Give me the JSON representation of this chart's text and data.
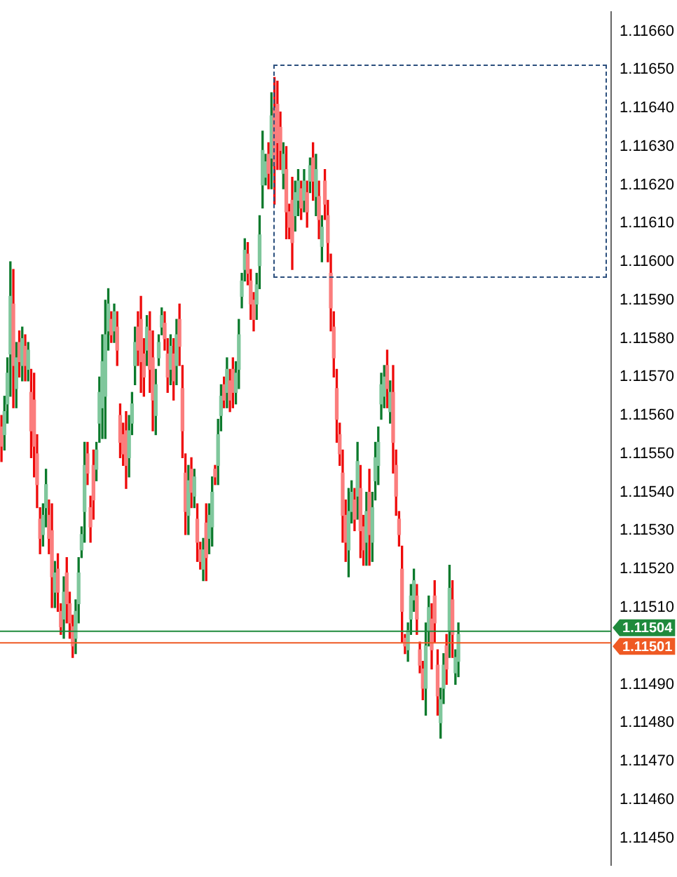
{
  "chart_data": {
    "type": "candlestick",
    "categories": [
      null,
      null,
      null,
      null,
      null,
      null,
      null,
      null,
      null,
      null,
      null,
      null,
      null,
      null,
      null,
      null,
      null,
      null,
      null,
      null,
      null,
      null,
      null,
      null,
      null,
      null,
      null,
      null,
      null,
      null,
      null,
      null,
      null,
      null,
      null,
      null,
      null,
      null,
      null,
      null,
      null,
      null,
      null,
      null,
      null,
      null,
      null,
      null,
      null,
      null,
      null,
      null,
      null,
      null,
      null,
      null,
      null,
      null,
      null,
      null,
      null,
      null,
      null,
      null,
      null,
      null,
      null,
      null,
      null,
      null,
      null,
      null,
      null,
      null,
      null,
      null,
      null,
      null,
      null,
      null,
      null,
      null,
      null,
      null,
      null,
      null,
      null,
      null,
      null,
      null,
      null,
      null,
      null,
      null,
      null,
      null,
      null,
      null,
      null,
      null,
      null,
      null,
      null,
      null,
      null,
      null,
      null,
      null,
      null,
      null,
      null,
      null,
      null,
      null,
      null,
      null,
      null,
      null,
      null,
      null,
      null,
      null,
      null,
      null,
      null,
      null,
      null,
      null,
      null,
      null,
      null,
      null,
      null,
      null,
      null,
      null,
      null,
      null,
      null,
      null,
      null,
      null,
      null,
      null,
      null,
      null,
      null,
      null,
      null,
      null,
      null,
      null,
      null,
      null,
      null,
      null,
      null,
      null,
      null,
      null,
      null,
      null,
      null,
      null,
      null,
      null,
      null,
      null,
      null,
      null,
      null,
      null,
      null,
      null,
      null,
      null,
      null,
      null,
      null,
      null,
      null,
      null,
      null,
      null,
      null,
      null,
      null,
      null,
      null,
      null,
      null,
      null,
      null,
      null,
      null,
      null,
      null,
      null,
      null,
      null,
      null,
      null,
      null,
      null,
      null,
      null
    ],
    "ohlc": [
      [
        1.11557,
        1.1156,
        1.11548,
        1.11552
      ],
      [
        1.11555,
        1.11565,
        1.11551,
        1.11561
      ],
      [
        1.11563,
        1.11575,
        1.11558,
        1.11571
      ],
      [
        1.11576,
        1.116,
        1.11565,
        1.11591
      ],
      [
        1.11589,
        1.11598,
        1.11562,
        1.11573
      ],
      [
        1.11567,
        1.11579,
        1.11562,
        1.11575
      ],
      [
        1.11579,
        1.11582,
        1.1157,
        1.11574
      ],
      [
        1.11573,
        1.11583,
        1.11569,
        1.1158
      ],
      [
        1.11578,
        1.11581,
        1.11569,
        1.11573
      ],
      [
        1.11572,
        1.11579,
        1.11569,
        1.11577
      ],
      [
        1.11566,
        1.11572,
        1.11549,
        1.11556
      ],
      [
        1.11564,
        1.11571,
        1.11544,
        1.11552
      ],
      [
        1.1155,
        1.11555,
        1.11536,
        1.11542
      ],
      [
        1.11533,
        1.11536,
        1.11524,
        1.11528
      ],
      [
        1.11529,
        1.11537,
        1.11526,
        1.11534
      ],
      [
        1.11536,
        1.11546,
        1.11531,
        1.11542
      ],
      [
        1.11534,
        1.11538,
        1.11524,
        1.11528
      ],
      [
        1.1153,
        1.11537,
        1.1151,
        1.11518
      ],
      [
        1.11514,
        1.11522,
        1.1151,
        1.11519
      ],
      [
        1.1152,
        1.11524,
        1.11509,
        1.11514
      ],
      [
        1.11509,
        1.11511,
        1.11503,
        1.11505
      ],
      [
        1.11507,
        1.11518,
        1.11502,
        1.11514
      ],
      [
        1.11519,
        1.11523,
        1.11506,
        1.11511
      ],
      [
        1.11511,
        1.11514,
        1.11502,
        1.11506
      ],
      [
        1.11505,
        1.11508,
        1.11497,
        1.115
      ],
      [
        1.11502,
        1.11512,
        1.11498,
        1.11509
      ],
      [
        1.11511,
        1.11523,
        1.11506,
        1.11519
      ],
      [
        1.11525,
        1.11531,
        1.11523,
        1.11529
      ],
      [
        1.11535,
        1.11553,
        1.11527,
        1.11547
      ],
      [
        1.1155,
        1.11553,
        1.11542,
        1.11545
      ],
      [
        1.11536,
        1.11539,
        1.11527,
        1.11531
      ],
      [
        1.11547,
        1.11551,
        1.11533,
        1.11538
      ],
      [
        1.11546,
        1.11553,
        1.11543,
        1.11551
      ],
      [
        1.11558,
        1.1157,
        1.11553,
        1.11566
      ],
      [
        1.11562,
        1.11581,
        1.11554,
        1.11574
      ],
      [
        1.11565,
        1.1159,
        1.11554,
        1.11581
      ],
      [
        1.11582,
        1.11593,
        1.11577,
        1.11589
      ],
      [
        1.11585,
        1.11587,
        1.11579,
        1.11581
      ],
      [
        1.11582,
        1.11589,
        1.11579,
        1.11587
      ],
      [
        1.11583,
        1.11587,
        1.11573,
        1.11577
      ],
      [
        1.1156,
        1.11563,
        1.11549,
        1.11553
      ],
      [
        1.11555,
        1.11558,
        1.11547,
        1.1155
      ],
      [
        1.11556,
        1.11561,
        1.11541,
        1.11547
      ],
      [
        1.11549,
        1.1156,
        1.11544,
        1.11556
      ],
      [
        1.11558,
        1.11566,
        1.11555,
        1.11563
      ],
      [
        1.11573,
        1.11583,
        1.11568,
        1.11579
      ],
      [
        1.11583,
        1.11587,
        1.11573,
        1.11577
      ],
      [
        1.11585,
        1.11591,
        1.11566,
        1.11574
      ],
      [
        1.11576,
        1.1158,
        1.11565,
        1.1157
      ],
      [
        1.11577,
        1.11586,
        1.11573,
        1.11583
      ],
      [
        1.11582,
        1.11587,
        1.11566,
        1.11572
      ],
      [
        1.11575,
        1.11582,
        1.11556,
        1.11564
      ],
      [
        1.1156,
        1.11572,
        1.11555,
        1.11568
      ],
      [
        1.11575,
        1.11581,
        1.11573,
        1.11579
      ],
      [
        1.11583,
        1.11588,
        1.11581,
        1.11586
      ],
      [
        1.11584,
        1.11587,
        1.11577,
        1.1158
      ],
      [
        1.11576,
        1.1158,
        1.11566,
        1.1157
      ],
      [
        1.11572,
        1.11581,
        1.11568,
        1.11578
      ],
      [
        1.11576,
        1.1158,
        1.11564,
        1.11569
      ],
      [
        1.11573,
        1.11585,
        1.11568,
        1.11581
      ],
      [
        1.11585,
        1.11589,
        1.11573,
        1.11578
      ],
      [
        1.11567,
        1.11573,
        1.11549,
        1.11556
      ],
      [
        1.11545,
        1.1155,
        1.11529,
        1.11535
      ],
      [
        1.11534,
        1.11547,
        1.11529,
        1.11543
      ],
      [
        1.11546,
        1.11549,
        1.11536,
        1.1154
      ],
      [
        1.11539,
        1.11546,
        1.11536,
        1.11544
      ],
      [
        1.11533,
        1.11537,
        1.11522,
        1.11527
      ],
      [
        1.11525,
        1.11527,
        1.1152,
        1.11522
      ],
      [
        1.1152,
        1.11528,
        1.11517,
        1.11525
      ],
      [
        1.11532,
        1.11537,
        1.11517,
        1.11523
      ],
      [
        1.11528,
        1.11537,
        1.11524,
        1.11534
      ],
      [
        1.11531,
        1.11544,
        1.11526,
        1.1154
      ],
      [
        1.11546,
        1.11547,
        1.11542,
        1.11544
      ],
      [
        1.11547,
        1.11559,
        1.11542,
        1.11555
      ],
      [
        1.1156,
        1.11568,
        1.11556,
        1.11565
      ],
      [
        1.11568,
        1.1157,
        1.11562,
        1.11564
      ],
      [
        1.11566,
        1.11575,
        1.11562,
        1.11572
      ],
      [
        1.11569,
        1.11572,
        1.11561,
        1.11564
      ],
      [
        1.11572,
        1.11575,
        1.11562,
        1.11566
      ],
      [
        1.11566,
        1.11574,
        1.11563,
        1.11571
      ],
      [
        1.11572,
        1.11585,
        1.11567,
        1.11581
      ],
      [
        1.11591,
        1.11597,
        1.11588,
        1.11595
      ],
      [
        1.11598,
        1.11606,
        1.11595,
        1.11603
      ],
      [
        1.11602,
        1.11605,
        1.11594,
        1.11597
      ],
      [
        1.11595,
        1.11598,
        1.11585,
        1.11589
      ],
      [
        1.1159,
        1.11592,
        1.11582,
        1.11585
      ],
      [
        1.11589,
        1.11597,
        1.11585,
        1.11594
      ],
      [
        1.11599,
        1.11612,
        1.11593,
        1.11607
      ],
      [
        1.1162,
        1.11634,
        1.11614,
        1.11629
      ],
      [
        1.11622,
        1.11628,
        1.1162,
        1.11626
      ],
      [
        1.11628,
        1.11631,
        1.11619,
        1.11623
      ],
      [
        1.11627,
        1.11644,
        1.11619,
        1.11638
      ],
      [
        1.1164,
        1.11648,
        1.11615,
        1.11625
      ],
      [
        1.11641,
        1.11647,
        1.11624,
        1.11631
      ],
      [
        1.11635,
        1.11639,
        1.11624,
        1.11629
      ],
      [
        1.11623,
        1.11631,
        1.11619,
        1.11628
      ],
      [
        1.11624,
        1.1163,
        1.11606,
        1.11613
      ],
      [
        1.11613,
        1.11615,
        1.11606,
        1.11609
      ],
      [
        1.11616,
        1.11622,
        1.11598,
        1.11605
      ],
      [
        1.11612,
        1.11621,
        1.11608,
        1.11618
      ],
      [
        1.11616,
        1.11624,
        1.11612,
        1.11621
      ],
      [
        1.11619,
        1.11621,
        1.11611,
        1.11614
      ],
      [
        1.11616,
        1.11624,
        1.11613,
        1.11621
      ],
      [
        1.11618,
        1.11621,
        1.11609,
        1.11613
      ],
      [
        1.11621,
        1.11627,
        1.11618,
        1.11625
      ],
      [
        1.11627,
        1.11631,
        1.11616,
        1.11621
      ],
      [
        1.11617,
        1.11628,
        1.11612,
        1.11624
      ],
      [
        1.11617,
        1.11621,
        1.11606,
        1.11611
      ],
      [
        1.11604,
        1.11612,
        1.116,
        1.11609
      ],
      [
        1.11621,
        1.11624,
        1.11611,
        1.11615
      ],
      [
        1.11612,
        1.11616,
        1.116,
        1.11605
      ],
      [
        1.11597,
        1.11602,
        1.11582,
        1.11588
      ],
      [
        1.11583,
        1.11587,
        1.1157,
        1.11575
      ],
      [
        1.11567,
        1.11572,
        1.11553,
        1.11559
      ],
      [
        1.11555,
        1.11558,
        1.11547,
        1.1155
      ],
      [
        1.11545,
        1.11551,
        1.11527,
        1.11534
      ],
      [
        1.11534,
        1.11538,
        1.11522,
        1.11527
      ],
      [
        1.11525,
        1.11541,
        1.11518,
        1.11535
      ],
      [
        1.11535,
        1.11543,
        1.11532,
        1.1154
      ],
      [
        1.11538,
        1.11541,
        1.1153,
        1.11533
      ],
      [
        1.11539,
        1.11553,
        1.11533,
        1.11548
      ],
      [
        1.11541,
        1.11547,
        1.11523,
        1.1153
      ],
      [
        1.11531,
        1.11534,
        1.11521,
        1.11525
      ],
      [
        1.11527,
        1.1154,
        1.11521,
        1.11535
      ],
      [
        1.1154,
        1.11546,
        1.11521,
        1.11529
      ],
      [
        1.11527,
        1.1154,
        1.11522,
        1.11536
      ],
      [
        1.11543,
        1.11553,
        1.11538,
        1.11549
      ],
      [
        1.11547,
        1.11557,
        1.11542,
        1.11553
      ],
      [
        1.11563,
        1.11571,
        1.11559,
        1.11568
      ],
      [
        1.11565,
        1.11573,
        1.11562,
        1.1157
      ],
      [
        1.11573,
        1.11577,
        1.11562,
        1.11567
      ],
      [
        1.11561,
        1.11569,
        1.11558,
        1.11566
      ],
      [
        1.11566,
        1.11573,
        1.11545,
        1.11553
      ],
      [
        1.11547,
        1.11551,
        1.11534,
        1.11539
      ],
      [
        1.11533,
        1.11535,
        1.11526,
        1.11529
      ],
      [
        1.1152,
        1.11526,
        1.11501,
        1.11509
      ],
      [
        1.11502,
        1.11503,
        1.11498,
        1.115
      ],
      [
        1.11499,
        1.11506,
        1.11496,
        1.11504
      ],
      [
        1.11507,
        1.11516,
        1.11503,
        1.11513
      ],
      [
        1.11512,
        1.1152,
        1.11509,
        1.11517
      ],
      [
        1.11513,
        1.11516,
        1.11503,
        1.11507
      ],
      [
        1.11499,
        1.11501,
        1.11493,
        1.11495
      ],
      [
        1.11494,
        1.11496,
        1.11486,
        1.11489
      ],
      [
        1.11489,
        1.11506,
        1.11482,
        1.115
      ],
      [
        1.11504,
        1.11513,
        1.115,
        1.1151
      ],
      [
        1.11507,
        1.11511,
        1.11494,
        1.11499
      ],
      [
        1.11513,
        1.11517,
        1.11501,
        1.11506
      ],
      [
        1.11495,
        1.11499,
        1.11482,
        1.11487
      ],
      [
        1.1148,
        1.11489,
        1.11476,
        1.11486
      ],
      [
        1.11489,
        1.11498,
        1.11485,
        1.11495
      ],
      [
        1.115,
        1.11503,
        1.1149,
        1.11494
      ],
      [
        1.11504,
        1.11521,
        1.11497,
        1.11515
      ],
      [
        1.11512,
        1.11517,
        1.11497,
        1.11503
      ],
      [
        1.11493,
        1.11499,
        1.1149,
        1.11497
      ],
      [
        1.11496,
        1.11506,
        1.11492,
        1.11503
      ],
      null,
      null,
      null,
      null,
      null,
      null,
      null,
      null,
      null,
      null,
      null,
      null,
      null,
      null,
      null,
      null,
      null,
      null,
      null,
      null,
      null,
      null,
      null,
      null,
      null,
      null,
      null,
      null,
      null,
      null,
      null,
      null,
      null,
      null,
      null,
      null,
      null,
      null,
      null,
      null,
      null,
      null,
      null,
      null,
      null,
      null,
      null,
      null,
      null,
      null,
      null
    ],
    "ylim": [
      1.11443,
      1.11665
    ],
    "yticks": [
      {
        "value": 1.1145,
        "label": "1.11450"
      },
      {
        "value": 1.1146,
        "label": "1.11460"
      },
      {
        "value": 1.1147,
        "label": "1.11470"
      },
      {
        "value": 1.1148,
        "label": "1.11480"
      },
      {
        "value": 1.1149,
        "label": "1.11490"
      },
      {
        "value": 1.1151,
        "label": "1.11510"
      },
      {
        "value": 1.1152,
        "label": "1.11520"
      },
      {
        "value": 1.1153,
        "label": "1.11530"
      },
      {
        "value": 1.1154,
        "label": "1.11540"
      },
      {
        "value": 1.1155,
        "label": "1.11550"
      },
      {
        "value": 1.1156,
        "label": "1.11560"
      },
      {
        "value": 1.1157,
        "label": "1.11570"
      },
      {
        "value": 1.1158,
        "label": "1.11580"
      },
      {
        "value": 1.1159,
        "label": "1.11590"
      },
      {
        "value": 1.116,
        "label": "1.11600"
      },
      {
        "value": 1.1161,
        "label": "1.11610"
      },
      {
        "value": 1.1162,
        "label": "1.11620"
      },
      {
        "value": 1.1163,
        "label": "1.11630"
      },
      {
        "value": 1.1164,
        "label": "1.11640"
      },
      {
        "value": 1.1165,
        "label": "1.11650"
      },
      {
        "value": 1.1166,
        "label": "1.11660"
      }
    ],
    "ref_lines": [
      {
        "axis": "y",
        "value": 1.11504,
        "label": "1.11504",
        "color": "#1f8a3c"
      },
      {
        "axis": "y",
        "value": 1.11501,
        "label": "1.11501",
        "color": "#ef5a24"
      }
    ],
    "tick_labels": "y"
  }
}
